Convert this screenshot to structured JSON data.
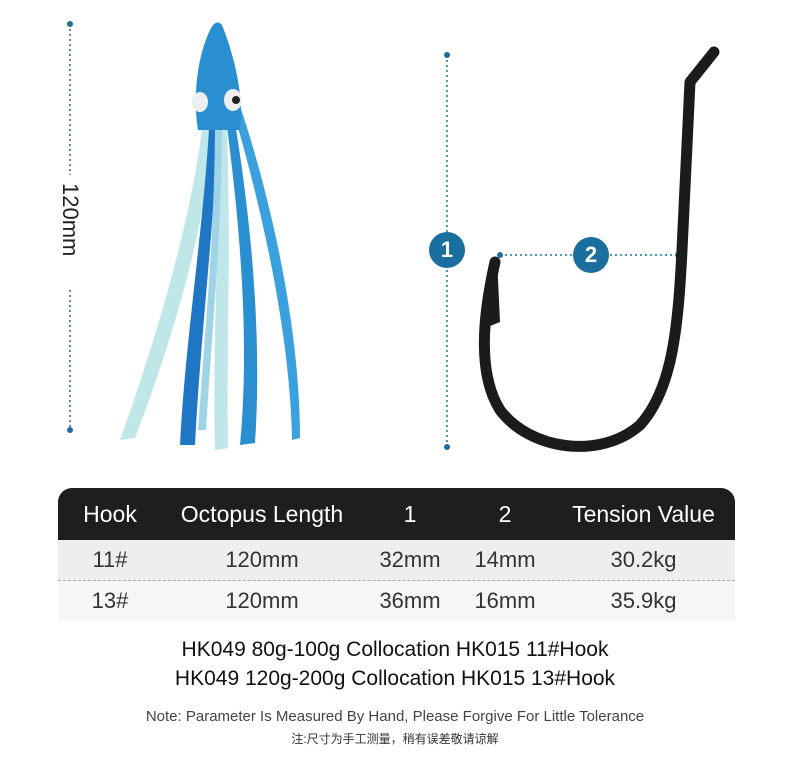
{
  "dimensions": {
    "octopus_length": "120mm",
    "marker_1": "1",
    "marker_2": "2"
  },
  "colors": {
    "accent": "#1a6f9f",
    "header_bg": "#1e1e1e",
    "octopus": "#2a8fd0"
  },
  "table": {
    "headers": [
      "Hook",
      "Octopus Length",
      "1",
      "2",
      "Tension Value"
    ],
    "rows": [
      [
        "11#",
        "120mm",
        "32mm",
        "14mm",
        "30.2kg"
      ],
      [
        "13#",
        "120mm",
        "36mm",
        "16mm",
        "35.9kg"
      ]
    ]
  },
  "collocation": [
    "HK049 80g-100g Collocation HK015 11#Hook",
    "HK049 120g-200g Collocation HK015 13#Hook"
  ],
  "note_en": "Note: Parameter Is Measured By Hand, Please Forgive For Little Tolerance",
  "note_cn": "注:尺寸为手工测量，稍有误差敬请谅解"
}
